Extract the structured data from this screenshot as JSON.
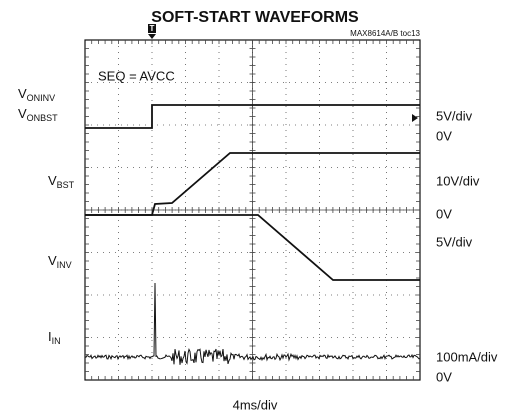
{
  "chart_data": {
    "type": "waveform",
    "title": "SOFT-START WAVEFORMS",
    "note": "MAX8614A/B toc13",
    "condition": "SEQ = AVCC",
    "trigger": "T",
    "x_scale": "4ms/div",
    "left_labels": [
      {
        "main": "V",
        "sub": "ONINV"
      },
      {
        "main": "V",
        "sub": "ONBST"
      },
      {
        "main": "V",
        "sub": "BST"
      },
      {
        "main": "V",
        "sub": "INV"
      },
      {
        "main": "I",
        "sub": "IN"
      }
    ],
    "right_labels": [
      "5V/div",
      "0V",
      "10V/div",
      "0V",
      "5V/div",
      "100mA/div",
      "0V"
    ]
  }
}
